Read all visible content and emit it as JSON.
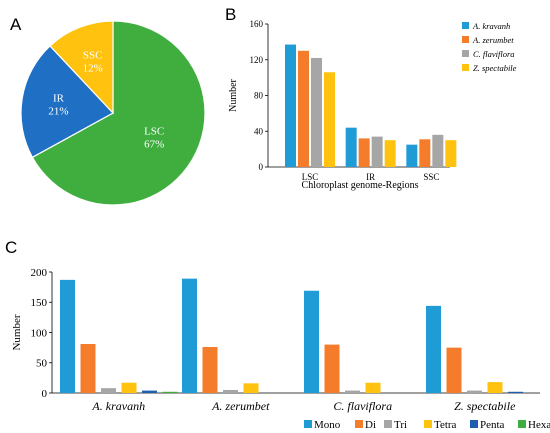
{
  "panels": {
    "A": {
      "letter": "A"
    },
    "B": {
      "letter": "B"
    },
    "C": {
      "letter": "C"
    }
  },
  "chart_data": [
    {
      "id": "A",
      "type": "pie",
      "slices": [
        {
          "name": "LSC",
          "value": 67,
          "label": "67%",
          "color": "#3fae3f"
        },
        {
          "name": "IR",
          "value": 21,
          "label": "21%",
          "color": "#1f6fc5"
        },
        {
          "name": "SSC",
          "value": 12,
          "label": "12%",
          "color": "#ffc20e"
        }
      ]
    },
    {
      "id": "B",
      "type": "bar",
      "categories": [
        "LSC",
        "IR",
        "SSC"
      ],
      "xlabel": "Chloroplast genome-Regions",
      "ylabel": "Number",
      "ylim": [
        0,
        160
      ],
      "yticks": [
        0,
        40,
        80,
        120,
        160
      ],
      "legend_position": "top-right",
      "series": [
        {
          "name": "A. kravanh",
          "color": "#1f9bd6",
          "values": [
            137,
            44,
            25
          ]
        },
        {
          "name": "A. zerumbet",
          "color": "#f47c2a",
          "values": [
            130,
            32,
            31
          ]
        },
        {
          "name": "C. flaviflora",
          "color": "#a6a6a6",
          "values": [
            122,
            34,
            36
          ]
        },
        {
          "name": "Z. spectabile",
          "color": "#ffc20e",
          "values": [
            106,
            30,
            30
          ]
        }
      ]
    },
    {
      "id": "C",
      "type": "bar",
      "categories": [
        "A. kravanh",
        "A. zerumbet",
        "C. flaviflora",
        "Z. spectabile"
      ],
      "xlabel": "",
      "ylabel": "Number",
      "ylim": [
        0,
        200
      ],
      "yticks": [
        0,
        50,
        100,
        150,
        200
      ],
      "legend_position": "bottom",
      "series": [
        {
          "name": "Mono",
          "color": "#1f9bd6",
          "values": [
            187,
            189,
            169,
            144
          ]
        },
        {
          "name": "Di",
          "color": "#f47c2a",
          "values": [
            81,
            76,
            80,
            75
          ]
        },
        {
          "name": "Tri",
          "color": "#a6a6a6",
          "values": [
            8,
            5,
            4,
            4
          ]
        },
        {
          "name": "Tetra",
          "color": "#ffc20e",
          "values": [
            17,
            16,
            17,
            18
          ]
        },
        {
          "name": "Penta",
          "color": "#1f5fb0",
          "values": [
            4,
            0,
            0,
            2
          ]
        },
        {
          "name": "Hexa",
          "color": "#3fae3f",
          "values": [
            2,
            0,
            0,
            0
          ]
        }
      ]
    }
  ]
}
